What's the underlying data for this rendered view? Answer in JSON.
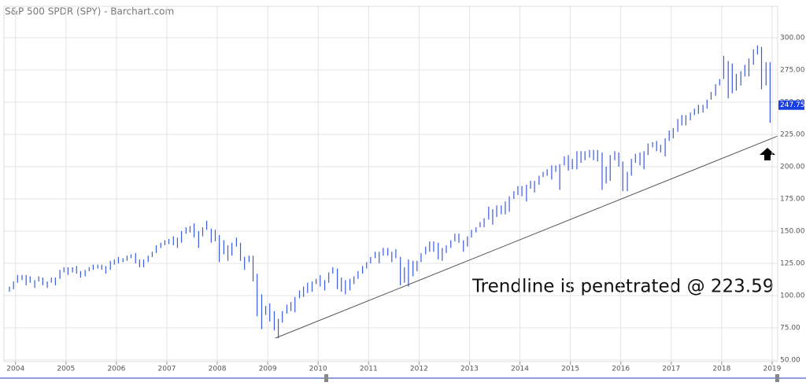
{
  "chart_data": {
    "type": "range",
    "title": "S&P 500 SPDR (SPY) - Barchart.com",
    "annotation": "Trendline is penetrated @ 223.59",
    "last_price": {
      "value": 247.75,
      "label": "247.75"
    },
    "color": "#3a5be0",
    "grid": true,
    "xlim": [
      2003.77,
      2019.11
    ],
    "ylim": [
      48.8,
      324.4
    ],
    "xticks": [
      2004,
      2005,
      2006,
      2007,
      2008,
      2009,
      2010,
      2011,
      2012,
      2013,
      2014,
      2015,
      2016,
      2017,
      2018,
      2019
    ],
    "yticks": [
      {
        "value": 50,
        "label": "50.00"
      },
      {
        "value": 75,
        "label": "75.00"
      },
      {
        "value": 100,
        "label": "100.00"
      },
      {
        "value": 125,
        "label": "125.00"
      },
      {
        "value": 150,
        "label": "150.00"
      },
      {
        "value": 175,
        "label": "175.00"
      },
      {
        "value": 200,
        "label": "200.00"
      },
      {
        "value": 225,
        "label": "225.00"
      },
      {
        "value": 250,
        "label": "250.00"
      },
      {
        "value": 275,
        "label": "275.00"
      },
      {
        "value": 300,
        "label": "300.00"
      }
    ],
    "trendline": {
      "x": [
        2009.15,
        2019.1
      ],
      "y": [
        67,
        223.59
      ],
      "color": "#555555"
    },
    "x": [
      2003.88,
      2003.96,
      2004.04,
      2004.13,
      2004.21,
      2004.29,
      2004.38,
      2004.46,
      2004.54,
      2004.63,
      2004.71,
      2004.79,
      2004.88,
      2004.96,
      2005.04,
      2005.13,
      2005.21,
      2005.29,
      2005.38,
      2005.46,
      2005.54,
      2005.63,
      2005.71,
      2005.79,
      2005.88,
      2005.96,
      2006.04,
      2006.13,
      2006.21,
      2006.29,
      2006.38,
      2006.46,
      2006.54,
      2006.63,
      2006.71,
      2006.79,
      2006.88,
      2006.96,
      2007.04,
      2007.13,
      2007.21,
      2007.29,
      2007.38,
      2007.46,
      2007.54,
      2007.63,
      2007.71,
      2007.79,
      2007.88,
      2007.96,
      2008.04,
      2008.13,
      2008.21,
      2008.29,
      2008.38,
      2008.46,
      2008.54,
      2008.63,
      2008.71,
      2008.79,
      2008.88,
      2008.96,
      2009.04,
      2009.13,
      2009.21,
      2009.29,
      2009.38,
      2009.46,
      2009.54,
      2009.63,
      2009.71,
      2009.79,
      2009.88,
      2009.96,
      2010.04,
      2010.13,
      2010.21,
      2010.29,
      2010.38,
      2010.46,
      2010.54,
      2010.63,
      2010.71,
      2010.79,
      2010.88,
      2010.96,
      2011.04,
      2011.13,
      2011.21,
      2011.29,
      2011.38,
      2011.46,
      2011.54,
      2011.63,
      2011.71,
      2011.79,
      2011.88,
      2011.96,
      2012.04,
      2012.13,
      2012.21,
      2012.29,
      2012.38,
      2012.46,
      2012.54,
      2012.63,
      2012.71,
      2012.79,
      2012.88,
      2012.96,
      2013.04,
      2013.13,
      2013.21,
      2013.29,
      2013.38,
      2013.46,
      2013.54,
      2013.63,
      2013.71,
      2013.79,
      2013.88,
      2013.96,
      2014.04,
      2014.13,
      2014.21,
      2014.29,
      2014.38,
      2014.46,
      2014.54,
      2014.63,
      2014.71,
      2014.79,
      2014.88,
      2014.96,
      2015.04,
      2015.13,
      2015.21,
      2015.29,
      2015.38,
      2015.46,
      2015.54,
      2015.63,
      2015.71,
      2015.79,
      2015.88,
      2015.96,
      2016.04,
      2016.13,
      2016.21,
      2016.29,
      2016.38,
      2016.46,
      2016.54,
      2016.63,
      2016.71,
      2016.79,
      2016.88,
      2016.96,
      2017.04,
      2017.13,
      2017.21,
      2017.29,
      2017.38,
      2017.46,
      2017.54,
      2017.63,
      2017.71,
      2017.79,
      2017.88,
      2017.96,
      2018.04,
      2018.13,
      2018.21,
      2018.29,
      2018.38,
      2018.46,
      2018.54,
      2018.63,
      2018.71,
      2018.79,
      2018.88,
      2018.96
    ],
    "high": [
      107,
      111,
      116,
      116,
      116,
      115,
      112,
      115,
      114,
      111,
      114,
      114,
      120,
      122,
      122,
      122,
      123,
      119,
      120,
      122,
      124,
      124,
      124,
      123,
      127,
      128,
      130,
      129,
      131,
      132,
      133,
      128,
      128,
      131,
      134,
      139,
      141,
      143,
      144,
      146,
      145,
      150,
      153,
      154,
      156,
      150,
      153,
      158,
      152,
      151,
      147,
      143,
      139,
      141,
      145,
      141,
      130,
      131,
      131,
      117,
      101,
      92,
      94,
      88,
      82,
      88,
      93,
      95,
      99,
      104,
      107,
      110,
      111,
      113,
      116,
      112,
      118,
      122,
      121,
      114,
      112,
      113,
      115,
      119,
      123,
      126,
      130,
      134,
      134,
      137,
      137,
      134,
      136,
      130,
      122,
      128,
      127,
      127,
      133,
      138,
      142,
      142,
      141,
      137,
      139,
      143,
      148,
      148,
      143,
      146,
      151,
      153,
      157,
      160,
      169,
      167,
      170,
      170,
      173,
      177,
      181,
      185,
      185,
      186,
      189,
      189,
      193,
      196,
      198,
      201,
      201,
      202,
      208,
      209,
      206,
      212,
      212,
      212,
      213,
      213,
      213,
      211,
      200,
      209,
      212,
      211,
      204,
      196,
      206,
      210,
      211,
      212,
      218,
      219,
      220,
      217,
      222,
      228,
      230,
      237,
      240,
      240,
      242,
      245,
      248,
      248,
      252,
      258,
      264,
      268,
      286,
      282,
      280,
      272,
      274,
      279,
      284,
      291,
      294,
      293,
      281,
      281
    ],
    "low": [
      103,
      105,
      110,
      112,
      108,
      110,
      106,
      111,
      108,
      106,
      110,
      108,
      113,
      118,
      116,
      118,
      117,
      114,
      115,
      119,
      120,
      121,
      120,
      117,
      120,
      124,
      125,
      126,
      127,
      129,
      125,
      122,
      122,
      126,
      130,
      133,
      137,
      139,
      140,
      139,
      137,
      141,
      148,
      149,
      145,
      137,
      146,
      151,
      141,
      142,
      126,
      132,
      127,
      131,
      138,
      127,
      120,
      126,
      111,
      84,
      74,
      85,
      80,
      73,
      67,
      79,
      86,
      88,
      87,
      98,
      99,
      102,
      103,
      109,
      107,
      104,
      110,
      117,
      105,
      103,
      101,
      104,
      109,
      113,
      117,
      121,
      125,
      129,
      125,
      131,
      131,
      126,
      129,
      108,
      110,
      107,
      115,
      119,
      126,
      132,
      134,
      134,
      128,
      127,
      133,
      137,
      142,
      141,
      134,
      138,
      145,
      149,
      153,
      153,
      159,
      155,
      161,
      163,
      163,
      165,
      175,
      178,
      177,
      173,
      183,
      180,
      186,
      192,
      193,
      190,
      196,
      182,
      201,
      197,
      198,
      198,
      203,
      205,
      207,
      205,
      204,
      182,
      187,
      189,
      205,
      200,
      181,
      181,
      193,
      203,
      201,
      198,
      209,
      215,
      212,
      211,
      208,
      220,
      222,
      227,
      232,
      232,
      236,
      240,
      241,
      242,
      245,
      252,
      255,
      263,
      268,
      253,
      257,
      259,
      263,
      270,
      270,
      279,
      287,
      260,
      263,
      234
    ]
  }
}
